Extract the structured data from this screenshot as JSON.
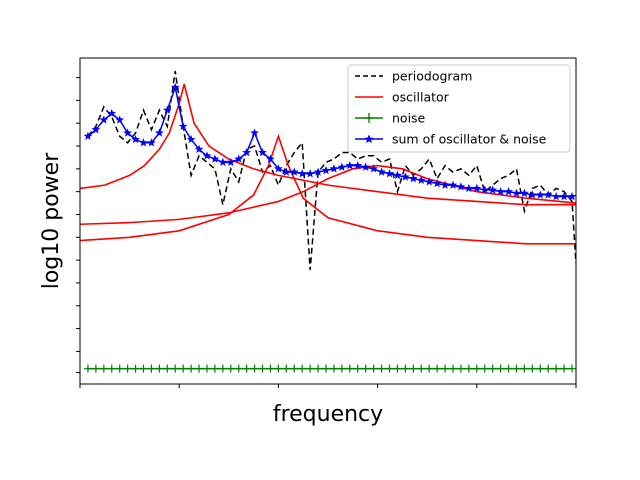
{
  "chart_data": {
    "type": "line",
    "title": "",
    "xlabel": "frequency",
    "ylabel": "log10 power",
    "xlim": [
      0,
      1
    ],
    "ylim": [
      0,
      1
    ],
    "x_ticks": [
      0,
      0.2,
      0.4,
      0.6,
      0.8,
      1.0
    ],
    "y_ticks": [
      0.035,
      0.1,
      0.17,
      0.24,
      0.31,
      0.38,
      0.45,
      0.52,
      0.59,
      0.66,
      0.73,
      0.8,
      0.87,
      0.94
    ],
    "tick_labels_shown": false,
    "grid": false,
    "legend_position": "top-right",
    "legend": [
      {
        "label": "periodogram",
        "style": "dashed",
        "color": "#000000",
        "marker": "none"
      },
      {
        "label": "oscillator",
        "style": "solid",
        "color": "#ff0000",
        "marker": "none"
      },
      {
        "label": "noise",
        "style": "solid",
        "color": "#008000",
        "marker": "plus"
      },
      {
        "label": "sum of oscillator & noise",
        "style": "solid",
        "color": "#0000ff",
        "marker": "star"
      }
    ],
    "series": [
      {
        "name": "periodogram",
        "color": "#000000",
        "style": "dashed",
        "x": [
          0.016,
          0.032,
          0.048,
          0.064,
          0.08,
          0.096,
          0.112,
          0.128,
          0.144,
          0.16,
          0.176,
          0.192,
          0.208,
          0.224,
          0.24,
          0.256,
          0.272,
          0.288,
          0.304,
          0.32,
          0.336,
          0.352,
          0.368,
          0.384,
          0.4,
          0.416,
          0.432,
          0.448,
          0.464,
          0.48,
          0.496,
          0.512,
          0.528,
          0.544,
          0.56,
          0.576,
          0.592,
          0.608,
          0.624,
          0.64,
          0.656,
          0.672,
          0.688,
          0.704,
          0.72,
          0.736,
          0.752,
          0.768,
          0.784,
          0.8,
          0.816,
          0.832,
          0.848,
          0.864,
          0.88,
          0.896,
          0.912,
          0.928,
          0.944,
          0.96,
          0.976,
          0.992,
          1.0
        ],
        "y": [
          0.76,
          0.79,
          0.85,
          0.82,
          0.76,
          0.74,
          0.77,
          0.84,
          0.78,
          0.84,
          0.79,
          0.96,
          0.79,
          0.64,
          0.7,
          0.68,
          0.66,
          0.55,
          0.66,
          0.62,
          0.72,
          0.73,
          0.65,
          0.67,
          0.61,
          0.67,
          0.71,
          0.74,
          0.35,
          0.65,
          0.68,
          0.69,
          0.71,
          0.71,
          0.69,
          0.7,
          0.7,
          0.68,
          0.69,
          0.59,
          0.67,
          0.64,
          0.66,
          0.69,
          0.63,
          0.67,
          0.65,
          0.66,
          0.64,
          0.67,
          0.59,
          0.61,
          0.63,
          0.64,
          0.66,
          0.53,
          0.6,
          0.61,
          0.58,
          0.6,
          0.59,
          0.56,
          0.37
        ]
      },
      {
        "name": "oscillator",
        "color": "#ff0000",
        "style": "solid",
        "curves": [
          {
            "x": [
              0,
              0.05,
              0.1,
              0.13,
              0.16,
              0.18,
              0.2,
              0.21,
              0.23,
              0.26,
              0.3,
              0.35,
              0.4,
              0.5,
              0.6,
              0.7,
              0.8,
              0.9,
              1.0
            ],
            "y": [
              0.6,
              0.61,
              0.64,
              0.67,
              0.72,
              0.77,
              0.86,
              0.92,
              0.8,
              0.73,
              0.69,
              0.66,
              0.64,
              0.61,
              0.59,
              0.57,
              0.56,
              0.55,
              0.55
            ]
          },
          {
            "x": [
              0,
              0.05,
              0.1,
              0.15,
              0.2,
              0.3,
              0.35,
              0.38,
              0.4,
              0.42,
              0.45,
              0.5,
              0.6,
              0.7,
              0.8,
              0.9,
              1.0
            ],
            "y": [
              0.44,
              0.445,
              0.45,
              0.46,
              0.47,
              0.52,
              0.58,
              0.67,
              0.76,
              0.67,
              0.57,
              0.51,
              0.47,
              0.45,
              0.44,
              0.43,
              0.43
            ]
          },
          {
            "x": [
              0,
              0.1,
              0.2,
              0.3,
              0.4,
              0.45,
              0.5,
              0.55,
              0.6,
              0.65,
              0.7,
              0.8,
              0.9,
              1.0
            ],
            "y": [
              0.49,
              0.495,
              0.505,
              0.525,
              0.56,
              0.59,
              0.63,
              0.66,
              0.67,
              0.66,
              0.63,
              0.59,
              0.57,
              0.555
            ]
          }
        ]
      },
      {
        "name": "noise",
        "color": "#008000",
        "style": "solid",
        "marker": "plus",
        "x_start": 0.016,
        "x_step": 0.016,
        "count": 62,
        "y": 0.047
      },
      {
        "name": "sum of oscillator & noise",
        "color": "#0000ff",
        "style": "solid",
        "marker": "star",
        "x": [
          0.016,
          0.032,
          0.048,
          0.064,
          0.08,
          0.096,
          0.112,
          0.128,
          0.144,
          0.16,
          0.176,
          0.192,
          0.208,
          0.224,
          0.24,
          0.256,
          0.272,
          0.288,
          0.304,
          0.32,
          0.336,
          0.352,
          0.368,
          0.384,
          0.4,
          0.416,
          0.432,
          0.448,
          0.464,
          0.48,
          0.496,
          0.512,
          0.528,
          0.544,
          0.56,
          0.576,
          0.592,
          0.608,
          0.624,
          0.64,
          0.656,
          0.672,
          0.688,
          0.704,
          0.72,
          0.736,
          0.752,
          0.768,
          0.784,
          0.8,
          0.816,
          0.832,
          0.848,
          0.864,
          0.88,
          0.896,
          0.912,
          0.928,
          0.944,
          0.96,
          0.976,
          0.992
        ],
        "y": [
          0.76,
          0.78,
          0.81,
          0.83,
          0.81,
          0.77,
          0.75,
          0.74,
          0.74,
          0.77,
          0.84,
          0.91,
          0.79,
          0.75,
          0.72,
          0.7,
          0.69,
          0.68,
          0.68,
          0.69,
          0.71,
          0.77,
          0.71,
          0.69,
          0.66,
          0.65,
          0.65,
          0.645,
          0.645,
          0.65,
          0.655,
          0.66,
          0.665,
          0.67,
          0.67,
          0.665,
          0.66,
          0.65,
          0.645,
          0.64,
          0.635,
          0.63,
          0.625,
          0.62,
          0.615,
          0.61,
          0.61,
          0.605,
          0.6,
          0.6,
          0.595,
          0.595,
          0.59,
          0.59,
          0.585,
          0.585,
          0.58,
          0.58,
          0.58,
          0.575,
          0.575,
          0.575
        ]
      }
    ]
  }
}
